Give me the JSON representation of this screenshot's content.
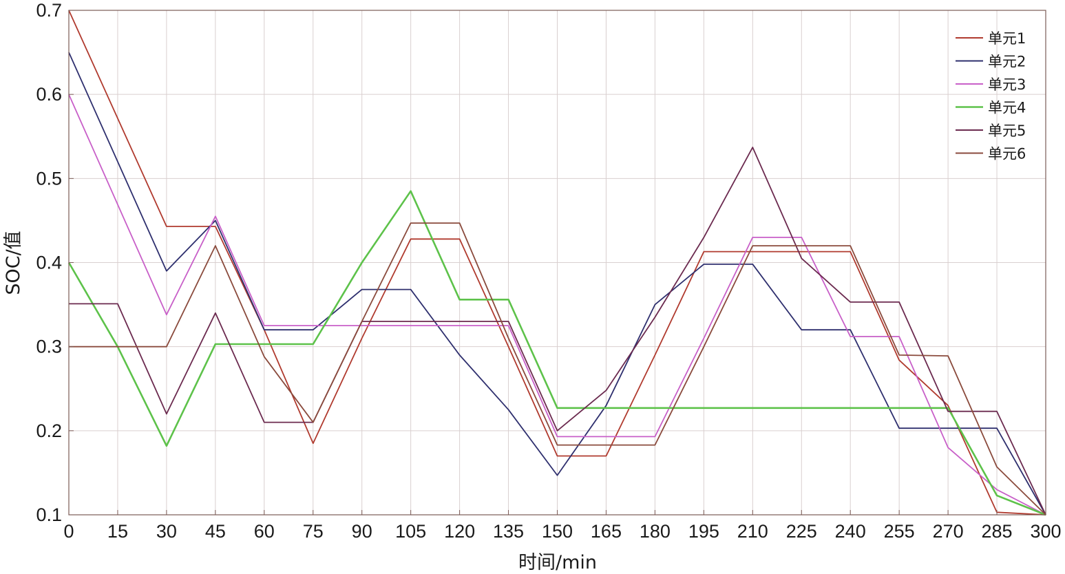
{
  "chart_data": {
    "type": "line",
    "xlabel": "时间/min",
    "ylabel": "SOC/值",
    "xlim": [
      0,
      300
    ],
    "ylim": [
      0.1,
      0.7
    ],
    "x_ticks": [
      0,
      15,
      30,
      45,
      60,
      75,
      90,
      105,
      120,
      135,
      150,
      165,
      180,
      195,
      210,
      225,
      240,
      255,
      270,
      285,
      300
    ],
    "y_ticks": [
      0.1,
      0.2,
      0.3,
      0.4,
      0.5,
      0.6,
      0.7
    ],
    "grid": true,
    "legend_position": "top-right",
    "series": [
      {
        "name": "单元1",
        "color": "#b03a2e",
        "points": [
          [
            0,
            0.7
          ],
          [
            30,
            0.443
          ],
          [
            45,
            0.443
          ],
          [
            60,
            0.32
          ],
          [
            75,
            0.185
          ],
          [
            90,
            0.31
          ],
          [
            105,
            0.428
          ],
          [
            120,
            0.428
          ],
          [
            135,
            0.3
          ],
          [
            150,
            0.17
          ],
          [
            165,
            0.17
          ],
          [
            180,
            0.29
          ],
          [
            195,
            0.413
          ],
          [
            210,
            0.413
          ],
          [
            225,
            0.413
          ],
          [
            240,
            0.413
          ],
          [
            255,
            0.284
          ],
          [
            270,
            0.23
          ],
          [
            285,
            0.103
          ],
          [
            300,
            0.1
          ]
        ]
      },
      {
        "name": "单元2",
        "color": "#2e2f6e",
        "points": [
          [
            0,
            0.65
          ],
          [
            30,
            0.39
          ],
          [
            45,
            0.45
          ],
          [
            60,
            0.32
          ],
          [
            75,
            0.32
          ],
          [
            90,
            0.368
          ],
          [
            105,
            0.368
          ],
          [
            120,
            0.29
          ],
          [
            135,
            0.225
          ],
          [
            150,
            0.147
          ],
          [
            165,
            0.23
          ],
          [
            180,
            0.35
          ],
          [
            195,
            0.398
          ],
          [
            210,
            0.398
          ],
          [
            225,
            0.32
          ],
          [
            240,
            0.32
          ],
          [
            255,
            0.203
          ],
          [
            270,
            0.203
          ],
          [
            285,
            0.203
          ],
          [
            300,
            0.1
          ]
        ]
      },
      {
        "name": "单元3",
        "color": "#c85fc8",
        "points": [
          [
            0,
            0.6
          ],
          [
            30,
            0.338
          ],
          [
            45,
            0.455
          ],
          [
            60,
            0.325
          ],
          [
            75,
            0.325
          ],
          [
            90,
            0.325
          ],
          [
            105,
            0.325
          ],
          [
            120,
            0.325
          ],
          [
            135,
            0.325
          ],
          [
            150,
            0.193
          ],
          [
            165,
            0.193
          ],
          [
            180,
            0.193
          ],
          [
            195,
            0.31
          ],
          [
            210,
            0.43
          ],
          [
            225,
            0.43
          ],
          [
            240,
            0.312
          ],
          [
            255,
            0.312
          ],
          [
            270,
            0.18
          ],
          [
            285,
            0.13
          ],
          [
            300,
            0.1
          ]
        ]
      },
      {
        "name": "单元4",
        "color": "#5dc24a",
        "points": [
          [
            0,
            0.4
          ],
          [
            15,
            0.3
          ],
          [
            30,
            0.182
          ],
          [
            45,
            0.303
          ],
          [
            60,
            0.303
          ],
          [
            75,
            0.303
          ],
          [
            90,
            0.4
          ],
          [
            105,
            0.485
          ],
          [
            120,
            0.356
          ],
          [
            135,
            0.356
          ],
          [
            150,
            0.227
          ],
          [
            165,
            0.227
          ],
          [
            180,
            0.227
          ],
          [
            195,
            0.227
          ],
          [
            210,
            0.227
          ],
          [
            225,
            0.227
          ],
          [
            240,
            0.227
          ],
          [
            255,
            0.227
          ],
          [
            270,
            0.227
          ],
          [
            285,
            0.123
          ],
          [
            300,
            0.1
          ]
        ]
      },
      {
        "name": "单元5",
        "color": "#6b2a4f",
        "points": [
          [
            0,
            0.351
          ],
          [
            15,
            0.351
          ],
          [
            30,
            0.22
          ],
          [
            45,
            0.34
          ],
          [
            60,
            0.21
          ],
          [
            75,
            0.21
          ],
          [
            90,
            0.33
          ],
          [
            105,
            0.33
          ],
          [
            120,
            0.33
          ],
          [
            135,
            0.33
          ],
          [
            150,
            0.2
          ],
          [
            165,
            0.248
          ],
          [
            180,
            0.335
          ],
          [
            195,
            0.43
          ],
          [
            210,
            0.537
          ],
          [
            225,
            0.405
          ],
          [
            240,
            0.353
          ],
          [
            255,
            0.353
          ],
          [
            270,
            0.223
          ],
          [
            285,
            0.223
          ],
          [
            300,
            0.1
          ]
        ]
      },
      {
        "name": "单元6",
        "color": "#8a4a3c",
        "points": [
          [
            0,
            0.3
          ],
          [
            15,
            0.3
          ],
          [
            30,
            0.3
          ],
          [
            45,
            0.42
          ],
          [
            60,
            0.288
          ],
          [
            75,
            0.21
          ],
          [
            90,
            0.33
          ],
          [
            105,
            0.447
          ],
          [
            120,
            0.447
          ],
          [
            135,
            0.31
          ],
          [
            150,
            0.183
          ],
          [
            165,
            0.183
          ],
          [
            180,
            0.183
          ],
          [
            195,
            0.3
          ],
          [
            210,
            0.42
          ],
          [
            225,
            0.42
          ],
          [
            240,
            0.42
          ],
          [
            255,
            0.29
          ],
          [
            270,
            0.289
          ],
          [
            285,
            0.157
          ],
          [
            300,
            0.1
          ]
        ]
      }
    ]
  }
}
